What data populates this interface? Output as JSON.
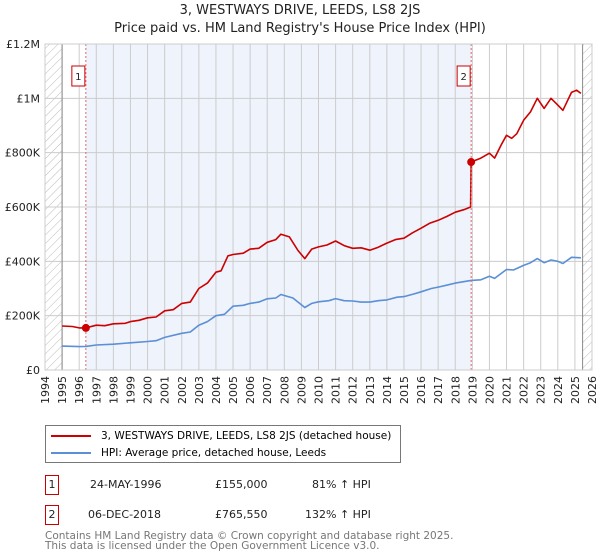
{
  "title_line1": "3, WESTWAYS DRIVE, LEEDS, LS8 2JS",
  "title_line2": "Price paid vs. HM Land Registry's House Price Index (HPI)",
  "colors": {
    "property": "#cc0000",
    "hpi": "#5b8fd6",
    "shade": "#eef3fc",
    "grid": "#cccccc"
  },
  "chart_data": {
    "type": "line",
    "title": "Price paid vs. HM Land Registry's House Price Index (HPI)",
    "xlim": [
      1994,
      2026
    ],
    "ylim": [
      0,
      1200000
    ],
    "x_ticks": [
      "1994",
      "1995",
      "1996",
      "1997",
      "1998",
      "1999",
      "2000",
      "2001",
      "2002",
      "2003",
      "2004",
      "2005",
      "2006",
      "2007",
      "2008",
      "2009",
      "2010",
      "2011",
      "2012",
      "2013",
      "2014",
      "2015",
      "2016",
      "2017",
      "2018",
      "2019",
      "2020",
      "2021",
      "2022",
      "2023",
      "2024",
      "2025",
      "2026"
    ],
    "y_ticks": [
      {
        "v": 0,
        "label": "£0"
      },
      {
        "v": 200000,
        "label": "£200K"
      },
      {
        "v": 400000,
        "label": "£400K"
      },
      {
        "v": 600000,
        "label": "£600K"
      },
      {
        "v": 800000,
        "label": "£800K"
      },
      {
        "v": 1000000,
        "label": "£1M"
      },
      {
        "v": 1200000,
        "label": "£1.2M"
      }
    ],
    "grid": true,
    "data_range": [
      1995,
      2025.45
    ],
    "series": [
      {
        "name": "3, WESTWAYS DRIVE, LEEDS, LS8 2JS (detached house)",
        "points": [
          [
            1995,
            162000
          ],
          [
            1995.6,
            160000
          ],
          [
            1996.0,
            155000
          ],
          [
            1996.39,
            155000
          ],
          [
            1997,
            165000
          ],
          [
            1997.5,
            163000
          ],
          [
            1998,
            170000
          ],
          [
            1998.7,
            172000
          ],
          [
            1999,
            178000
          ],
          [
            1999.5,
            183000
          ],
          [
            2000,
            192000
          ],
          [
            2000.5,
            195000
          ],
          [
            2001,
            218000
          ],
          [
            2001.5,
            222000
          ],
          [
            2002,
            245000
          ],
          [
            2002.5,
            250000
          ],
          [
            2003,
            300000
          ],
          [
            2003.5,
            320000
          ],
          [
            2004,
            360000
          ],
          [
            2004.3,
            365000
          ],
          [
            2004.7,
            420000
          ],
          [
            2005,
            425000
          ],
          [
            2005.6,
            430000
          ],
          [
            2006,
            445000
          ],
          [
            2006.5,
            448000
          ],
          [
            2007,
            470000
          ],
          [
            2007.5,
            480000
          ],
          [
            2007.8,
            500000
          ],
          [
            2008.3,
            490000
          ],
          [
            2008.8,
            440000
          ],
          [
            2009.2,
            410000
          ],
          [
            2009.6,
            445000
          ],
          [
            2010,
            453000
          ],
          [
            2010.5,
            460000
          ],
          [
            2011,
            475000
          ],
          [
            2011.5,
            458000
          ],
          [
            2012,
            448000
          ],
          [
            2012.5,
            450000
          ],
          [
            2013,
            441000
          ],
          [
            2013.5,
            452000
          ],
          [
            2014,
            467000
          ],
          [
            2014.5,
            480000
          ],
          [
            2015,
            485000
          ],
          [
            2015.5,
            505000
          ],
          [
            2016,
            522000
          ],
          [
            2016.5,
            540000
          ],
          [
            2017,
            551000
          ],
          [
            2017.5,
            565000
          ],
          [
            2018,
            581000
          ],
          [
            2018.5,
            590000
          ],
          [
            2018.9,
            600000
          ],
          [
            2018.93,
            765550
          ],
          [
            2019.5,
            780000
          ],
          [
            2020,
            798000
          ],
          [
            2020.3,
            780000
          ],
          [
            2020.7,
            830000
          ],
          [
            2021,
            864000
          ],
          [
            2021.3,
            853000
          ],
          [
            2021.6,
            870000
          ],
          [
            2022,
            919000
          ],
          [
            2022.4,
            950000
          ],
          [
            2022.8,
            1000000
          ],
          [
            2023.2,
            963000
          ],
          [
            2023.6,
            1000000
          ],
          [
            2024,
            975000
          ],
          [
            2024.3,
            956000
          ],
          [
            2024.8,
            1022000
          ],
          [
            2025.1,
            1030000
          ],
          [
            2025.35,
            1018000
          ]
        ]
      },
      {
        "name": "HPI: Average price, detached house, Leeds",
        "points": [
          [
            1995,
            88000
          ],
          [
            1996,
            86000
          ],
          [
            1996.39,
            87000
          ],
          [
            1997,
            92000
          ],
          [
            1998,
            95000
          ],
          [
            1999,
            100000
          ],
          [
            2000,
            105000
          ],
          [
            2000.5,
            108000
          ],
          [
            2001,
            120000
          ],
          [
            2002,
            135000
          ],
          [
            2002.5,
            140000
          ],
          [
            2003,
            165000
          ],
          [
            2003.5,
            178000
          ],
          [
            2004,
            200000
          ],
          [
            2004.5,
            205000
          ],
          [
            2005,
            235000
          ],
          [
            2005.6,
            238000
          ],
          [
            2006,
            245000
          ],
          [
            2006.5,
            250000
          ],
          [
            2007,
            262000
          ],
          [
            2007.5,
            265000
          ],
          [
            2007.8,
            278000
          ],
          [
            2008.5,
            265000
          ],
          [
            2009.2,
            230000
          ],
          [
            2009.6,
            245000
          ],
          [
            2010,
            251000
          ],
          [
            2010.6,
            255000
          ],
          [
            2011,
            263000
          ],
          [
            2011.5,
            255000
          ],
          [
            2012,
            254000
          ],
          [
            2012.5,
            250000
          ],
          [
            2013,
            250000
          ],
          [
            2013.5,
            255000
          ],
          [
            2014,
            258000
          ],
          [
            2014.6,
            268000
          ],
          [
            2015,
            270000
          ],
          [
            2015.6,
            280000
          ],
          [
            2016,
            288000
          ],
          [
            2016.6,
            300000
          ],
          [
            2017,
            305000
          ],
          [
            2017.5,
            312000
          ],
          [
            2018,
            320000
          ],
          [
            2018.93,
            330000
          ],
          [
            2019.5,
            332000
          ],
          [
            2020,
            345000
          ],
          [
            2020.3,
            337000
          ],
          [
            2021,
            370000
          ],
          [
            2021.4,
            368000
          ],
          [
            2022,
            385000
          ],
          [
            2022.4,
            395000
          ],
          [
            2022.8,
            410000
          ],
          [
            2023.2,
            395000
          ],
          [
            2023.6,
            405000
          ],
          [
            2024,
            400000
          ],
          [
            2024.3,
            392000
          ],
          [
            2024.8,
            415000
          ],
          [
            2025.35,
            413000
          ]
        ]
      }
    ],
    "annotations": [
      {
        "label": "1",
        "x": 1996.39,
        "y": 155000
      },
      {
        "label": "2",
        "x": 2018.93,
        "y": 765550
      }
    ]
  },
  "legend": {
    "property": "3, WESTWAYS DRIVE, LEEDS, LS8 2JS (detached house)",
    "hpi": "HPI: Average price, detached house, Leeds"
  },
  "sales": [
    {
      "num": "1",
      "date": "24-MAY-1996",
      "price": "£155,000",
      "hpi": "81% ↑ HPI"
    },
    {
      "num": "2",
      "date": "06-DEC-2018",
      "price": "£765,550",
      "hpi": "132% ↑ HPI"
    }
  ],
  "footer": {
    "line1": "Contains HM Land Registry data © Crown copyright and database right 2025.",
    "line2": "This data is licensed under the Open Government Licence v3.0."
  }
}
